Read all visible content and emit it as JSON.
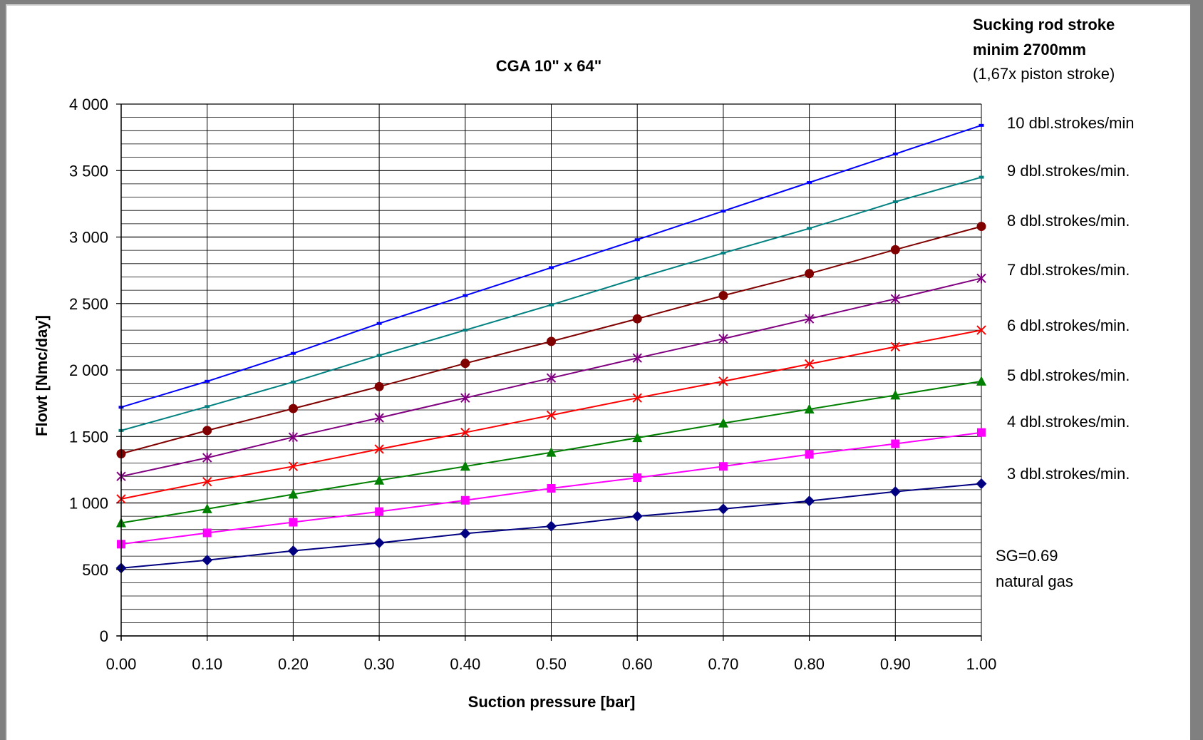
{
  "chart_data": {
    "type": "line",
    "title": "CGA 10\" x 64\"",
    "xlabel": "Suction pressure [bar]",
    "ylabel": "Flowt [Nmc/day]",
    "xlim": [
      0,
      1
    ],
    "ylim": [
      0,
      4000
    ],
    "x_ticks": [
      "0.00",
      "0.10",
      "0.20",
      "0.30",
      "0.40",
      "0.50",
      "0.60",
      "0.70",
      "0.80",
      "0.90",
      "1.00"
    ],
    "y_ticks": [
      "0",
      "500",
      "1 000",
      "1 500",
      "2 000",
      "2 500",
      "3 000",
      "3 500",
      "4 000"
    ],
    "grid": true,
    "x": [
      0.0,
      0.1,
      0.2,
      0.3,
      0.4,
      0.5,
      0.6,
      0.7,
      0.8,
      0.9,
      1.0
    ],
    "series": [
      {
        "name": "10 dbl.strokes/min",
        "color": "#0000ff",
        "marker": "dash",
        "values": [
          1720,
          1915,
          2125,
          2350,
          2560,
          2770,
          2980,
          3195,
          3410,
          3625,
          3840
        ]
      },
      {
        "name": "9 dbl.strokes/min.",
        "color": "#008080",
        "marker": "dash",
        "values": [
          1545,
          1725,
          1910,
          2110,
          2300,
          2490,
          2690,
          2880,
          3065,
          3265,
          3450
        ]
      },
      {
        "name": "8 dbl.strokes/min.",
        "color": "#800000",
        "marker": "circle",
        "values": [
          1370,
          1545,
          1710,
          1875,
          2050,
          2215,
          2385,
          2560,
          2725,
          2905,
          3080
        ]
      },
      {
        "name": "7 dbl.strokes/min.",
        "color": "#800080",
        "marker": "star",
        "values": [
          1200,
          1340,
          1495,
          1640,
          1790,
          1940,
          2090,
          2235,
          2385,
          2535,
          2690
        ]
      },
      {
        "name": "6 dbl.strokes/min.",
        "color": "#ff0000",
        "marker": "x",
        "values": [
          1030,
          1160,
          1275,
          1405,
          1530,
          1660,
          1790,
          1915,
          2045,
          2175,
          2300
        ]
      },
      {
        "name": "5 dbl.strokes/min.",
        "color": "#008000",
        "marker": "triangle",
        "values": [
          850,
          955,
          1065,
          1170,
          1275,
          1380,
          1490,
          1600,
          1705,
          1810,
          1915
        ]
      },
      {
        "name": "4 dbl.strokes/min.",
        "color": "#ff00ff",
        "marker": "square",
        "values": [
          690,
          775,
          855,
          935,
          1020,
          1110,
          1190,
          1275,
          1365,
          1445,
          1530
        ]
      },
      {
        "name": "3 dbl.strokes/min.",
        "color": "#000080",
        "marker": "diamond",
        "values": [
          510,
          570,
          640,
          700,
          770,
          825,
          900,
          955,
          1015,
          1085,
          1145
        ]
      }
    ],
    "legend_y_positions": [
      3840,
      3450,
      3080,
      2690,
      2300,
      1915,
      1530,
      1145
    ],
    "annotations": {
      "top_right_line1": "Sucking rod stroke",
      "top_right_line2": "minim 2700mm",
      "top_right_line3": "(1,67x piston stroke)",
      "sg": "SG=0.69",
      "gas": "natural gas"
    }
  }
}
